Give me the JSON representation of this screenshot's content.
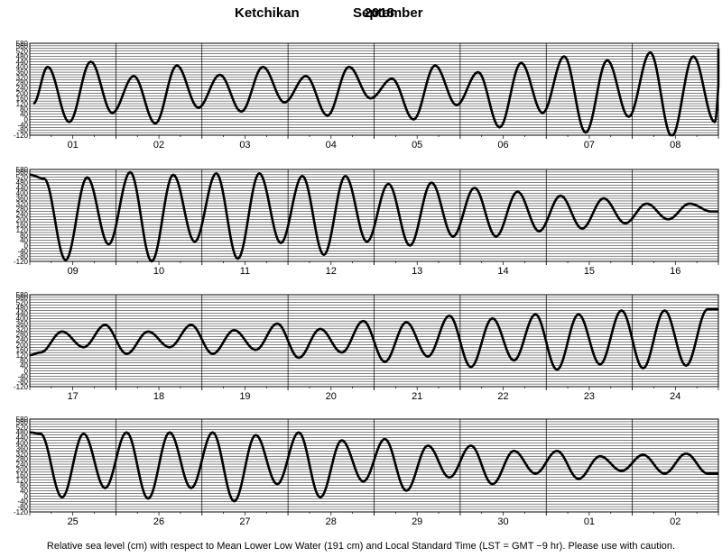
{
  "title": {
    "station": "Ketchikan",
    "month": "September",
    "year": "2018"
  },
  "footer": "Relative sea level (cm) with respect to Mean Lower Low Water (191 cm) and Local Standard Time (LST = GMT −9 hr). Please use with caution.",
  "chart_data": [
    {
      "type": "line",
      "yunit": "cm",
      "ylim": [
        -120,
        580
      ],
      "yticks": [
        -120,
        -80,
        -40,
        0,
        40,
        80,
        120,
        160,
        200,
        240,
        280,
        320,
        360,
        400,
        440,
        480,
        520,
        560,
        580
      ],
      "categories": [
        "01",
        "02",
        "03",
        "04",
        "05",
        "06",
        "07",
        "08"
      ],
      "extrema": [
        {
          "day": 0.5,
          "level": 120
        },
        {
          "day": 2.5,
          "level": 400
        },
        {
          "day": 5.5,
          "level": -20
        },
        {
          "day": 8.5,
          "level": 440
        },
        {
          "day": 11.5,
          "level": 50
        },
        {
          "day": 14.5,
          "level": 330
        },
        {
          "day": 17.5,
          "level": -30
        },
        {
          "day": 20.5,
          "level": 410
        },
        {
          "day": 23.5,
          "level": 90
        },
        {
          "day": 26.5,
          "level": 340
        },
        {
          "day": 29.5,
          "level": 60
        },
        {
          "day": 32.5,
          "level": 400
        },
        {
          "day": 35.5,
          "level": 130
        },
        {
          "day": 38.5,
          "level": 330
        },
        {
          "day": 41.5,
          "level": 30
        },
        {
          "day": 44.5,
          "level": 400
        },
        {
          "day": 47.5,
          "level": 160
        },
        {
          "day": 50.5,
          "level": 310
        },
        {
          "day": 53.5,
          "level": 0
        },
        {
          "day": 56.5,
          "level": 410
        },
        {
          "day": 59.5,
          "level": 110
        },
        {
          "day": 62.5,
          "level": 360
        },
        {
          "day": 65.5,
          "level": -60
        },
        {
          "day": 68.5,
          "level": 430
        },
        {
          "day": 71.5,
          "level": 50
        },
        {
          "day": 74.5,
          "level": 480
        },
        {
          "day": 77.5,
          "level": -100
        },
        {
          "day": 80.5,
          "level": 450
        },
        {
          "day": 83.5,
          "level": 20
        },
        {
          "day": 86.5,
          "level": 510
        },
        {
          "day": 89.5,
          "level": -130
        },
        {
          "day": 92.5,
          "level": 480
        },
        {
          "day": 95.5,
          "level": -20
        },
        {
          "day": 96.5,
          "level": 540
        }
      ]
    },
    {
      "type": "line",
      "yunit": "cm",
      "ylim": [
        -120,
        580
      ],
      "yticks": [
        -120,
        -80,
        -40,
        0,
        40,
        80,
        120,
        160,
        200,
        240,
        280,
        320,
        360,
        400,
        440,
        480,
        520,
        560,
        580
      ],
      "categories": [
        "09",
        "10",
        "11",
        "12",
        "13",
        "14",
        "15",
        "16"
      ],
      "extrema": [
        {
          "day": 0,
          "level": 540
        },
        {
          "day": 2,
          "level": 510
        },
        {
          "day": 5,
          "level": -110
        },
        {
          "day": 8,
          "level": 520
        },
        {
          "day": 11,
          "level": 10
        },
        {
          "day": 14,
          "level": 560
        },
        {
          "day": 17,
          "level": -120
        },
        {
          "day": 20,
          "level": 540
        },
        {
          "day": 23,
          "level": 30
        },
        {
          "day": 26,
          "level": 550
        },
        {
          "day": 29,
          "level": -100
        },
        {
          "day": 32,
          "level": 550
        },
        {
          "day": 35,
          "level": 20
        },
        {
          "day": 38,
          "level": 530
        },
        {
          "day": 41,
          "level": -70
        },
        {
          "day": 44,
          "level": 530
        },
        {
          "day": 47,
          "level": 30
        },
        {
          "day": 50,
          "level": 470
        },
        {
          "day": 53,
          "level": 0
        },
        {
          "day": 56,
          "level": 480
        },
        {
          "day": 59,
          "level": 70
        },
        {
          "day": 62,
          "level": 440
        },
        {
          "day": 65,
          "level": 70
        },
        {
          "day": 68,
          "level": 410
        },
        {
          "day": 71,
          "level": 110
        },
        {
          "day": 74,
          "level": 380
        },
        {
          "day": 77,
          "level": 130
        },
        {
          "day": 80,
          "level": 360
        },
        {
          "day": 83,
          "level": 170
        },
        {
          "day": 86,
          "level": 320
        },
        {
          "day": 89,
          "level": 200
        },
        {
          "day": 92,
          "level": 320
        },
        {
          "day": 95,
          "level": 260
        },
        {
          "day": 96,
          "level": 260
        }
      ]
    },
    {
      "type": "line",
      "yunit": "cm",
      "ylim": [
        -120,
        580
      ],
      "yticks": [
        -120,
        -80,
        -40,
        0,
        40,
        80,
        120,
        160,
        200,
        240,
        280,
        320,
        360,
        400,
        440,
        480,
        520,
        560,
        580
      ],
      "categories": [
        "17",
        "18",
        "19",
        "20",
        "21",
        "22",
        "23",
        "24"
      ],
      "extrema": [
        {
          "day": 0,
          "level": 120
        },
        {
          "day": 1.5,
          "level": 140
        },
        {
          "day": 4.5,
          "level": 300
        },
        {
          "day": 7.5,
          "level": 180
        },
        {
          "day": 10.5,
          "level": 350
        },
        {
          "day": 13.5,
          "level": 130
        },
        {
          "day": 16.5,
          "level": 300
        },
        {
          "day": 19.5,
          "level": 180
        },
        {
          "day": 22.5,
          "level": 350
        },
        {
          "day": 25.5,
          "level": 130
        },
        {
          "day": 28.5,
          "level": 310
        },
        {
          "day": 31.5,
          "level": 160
        },
        {
          "day": 34.5,
          "level": 360
        },
        {
          "day": 37.5,
          "level": 100
        },
        {
          "day": 40.5,
          "level": 320
        },
        {
          "day": 43.5,
          "level": 140
        },
        {
          "day": 46.5,
          "level": 380
        },
        {
          "day": 49.5,
          "level": 70
        },
        {
          "day": 52.5,
          "level": 370
        },
        {
          "day": 55.5,
          "level": 110
        },
        {
          "day": 58.5,
          "level": 420
        },
        {
          "day": 61.5,
          "level": 30
        },
        {
          "day": 64.5,
          "level": 400
        },
        {
          "day": 67.5,
          "level": 80
        },
        {
          "day": 70.5,
          "level": 430
        },
        {
          "day": 73.5,
          "level": 10
        },
        {
          "day": 76.5,
          "level": 430
        },
        {
          "day": 79.5,
          "level": 50
        },
        {
          "day": 82.5,
          "level": 460
        },
        {
          "day": 85.5,
          "level": 20
        },
        {
          "day": 88.5,
          "level": 460
        },
        {
          "day": 91.5,
          "level": 40
        },
        {
          "day": 94.5,
          "level": 470
        },
        {
          "day": 96,
          "level": 470
        }
      ]
    },
    {
      "type": "line",
      "yunit": "cm",
      "ylim": [
        -120,
        580
      ],
      "yticks": [
        -120,
        -80,
        -40,
        0,
        40,
        80,
        120,
        160,
        200,
        240,
        280,
        320,
        360,
        400,
        440,
        480,
        520,
        560,
        580
      ],
      "categories": [
        "25",
        "26",
        "27",
        "28",
        "29",
        "30",
        "01",
        "02"
      ],
      "extrema": [
        {
          "day": 0,
          "level": 480
        },
        {
          "day": 1.5,
          "level": 470
        },
        {
          "day": 4.5,
          "level": -10
        },
        {
          "day": 7.5,
          "level": 470
        },
        {
          "day": 10.5,
          "level": 60
        },
        {
          "day": 13.5,
          "level": 480
        },
        {
          "day": 16.5,
          "level": -20
        },
        {
          "day": 19.5,
          "level": 480
        },
        {
          "day": 22.5,
          "level": 60
        },
        {
          "day": 25.5,
          "level": 480
        },
        {
          "day": 28.5,
          "level": -40
        },
        {
          "day": 31.5,
          "level": 460
        },
        {
          "day": 34.5,
          "level": 90
        },
        {
          "day": 37.5,
          "level": 480
        },
        {
          "day": 40.5,
          "level": -10
        },
        {
          "day": 43.5,
          "level": 420
        },
        {
          "day": 46.5,
          "level": 110
        },
        {
          "day": 49.5,
          "level": 430
        },
        {
          "day": 52.5,
          "level": 40
        },
        {
          "day": 55.5,
          "level": 380
        },
        {
          "day": 58.5,
          "level": 140
        },
        {
          "day": 61.5,
          "level": 380
        },
        {
          "day": 64.5,
          "level": 90
        },
        {
          "day": 67.5,
          "level": 340
        },
        {
          "day": 70.5,
          "level": 170
        },
        {
          "day": 73.5,
          "level": 340
        },
        {
          "day": 76.5,
          "level": 130
        },
        {
          "day": 79.5,
          "level": 300
        },
        {
          "day": 82.5,
          "level": 190
        },
        {
          "day": 85.5,
          "level": 310
        },
        {
          "day": 88.5,
          "level": 170
        },
        {
          "day": 91.5,
          "level": 320
        },
        {
          "day": 94.5,
          "level": 170
        },
        {
          "day": 96,
          "level": 170
        }
      ]
    }
  ]
}
